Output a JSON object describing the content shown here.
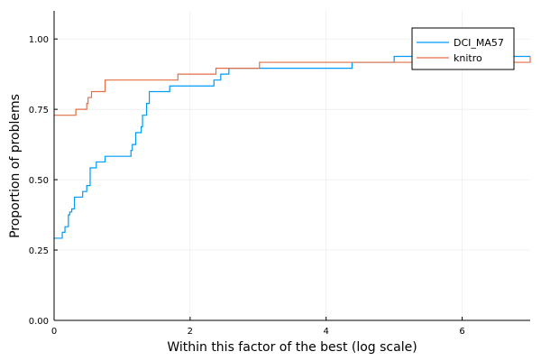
{
  "chart_data": {
    "type": "line",
    "xlabel": "Within this factor of the best (log scale)",
    "ylabel": "Proportion of problems",
    "xlim": [
      0,
      7
    ],
    "ylim": [
      0,
      1.1
    ],
    "xticks": [
      0,
      2,
      4,
      6
    ],
    "xtick_labels": [
      "0",
      "2",
      "4",
      "6"
    ],
    "yticks": [
      0,
      0.25,
      0.5,
      0.75,
      1.0
    ],
    "ytick_labels": [
      "0.00",
      "0.25",
      "0.50",
      "0.75",
      "1.00"
    ],
    "grid": true,
    "legend_position": "top-right",
    "series": [
      {
        "name": "DCI_MA57",
        "color": "#009AF9",
        "step": "post",
        "x": [
          0,
          0.12,
          0.16,
          0.21,
          0.23,
          0.26,
          0.3,
          0.42,
          0.48,
          0.53,
          0.56,
          0.62,
          0.67,
          0.75,
          0.82,
          1.13,
          1.15,
          1.2,
          1.28,
          1.3,
          1.36,
          1.4,
          1.45,
          1.7,
          2.35,
          2.45,
          2.57,
          2.62,
          4.38,
          5.0,
          7.0
        ],
        "y": [
          0.292,
          0.313,
          0.333,
          0.375,
          0.385,
          0.396,
          0.438,
          0.458,
          0.479,
          0.542,
          0.542,
          0.563,
          0.563,
          0.583,
          0.583,
          0.604,
          0.625,
          0.667,
          0.688,
          0.729,
          0.771,
          0.813,
          0.813,
          0.833,
          0.854,
          0.875,
          0.896,
          0.896,
          0.917,
          0.938,
          0.938
        ]
      },
      {
        "name": "knitro",
        "color": "#E26F46",
        "step": "post",
        "x": [
          0,
          0.32,
          0.48,
          0.5,
          0.52,
          0.55,
          0.75,
          1.82,
          2.38,
          3.02,
          7.0
        ],
        "y": [
          0.729,
          0.75,
          0.771,
          0.792,
          0.792,
          0.813,
          0.854,
          0.875,
          0.896,
          0.917,
          0.938
        ]
      }
    ]
  }
}
